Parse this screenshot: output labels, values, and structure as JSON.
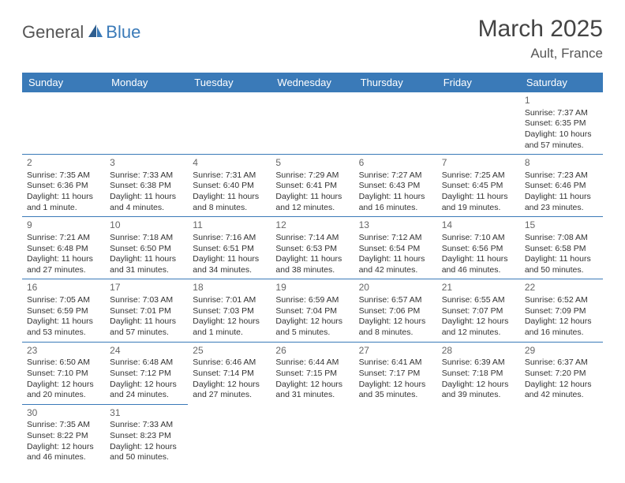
{
  "brand": {
    "part1": "General",
    "part2": "Blue"
  },
  "title": "March 2025",
  "location": "Ault, France",
  "colors": {
    "header_bg": "#3a7ab8",
    "header_text": "#ffffff",
    "border": "#3a7ab8",
    "body_text": "#333333",
    "daynum": "#666666",
    "background": "#ffffff"
  },
  "typography": {
    "title_fontsize": 30,
    "location_fontsize": 17,
    "dayheader_fontsize": 13,
    "cell_fontsize": 10.5,
    "daynum_fontsize": 12
  },
  "day_headers": [
    "Sunday",
    "Monday",
    "Tuesday",
    "Wednesday",
    "Thursday",
    "Friday",
    "Saturday"
  ],
  "weeks": [
    [
      null,
      null,
      null,
      null,
      null,
      null,
      {
        "n": "1",
        "sr": "Sunrise: 7:37 AM",
        "ss": "Sunset: 6:35 PM",
        "dl": "Daylight: 10 hours and 57 minutes."
      }
    ],
    [
      {
        "n": "2",
        "sr": "Sunrise: 7:35 AM",
        "ss": "Sunset: 6:36 PM",
        "dl": "Daylight: 11 hours and 1 minute."
      },
      {
        "n": "3",
        "sr": "Sunrise: 7:33 AM",
        "ss": "Sunset: 6:38 PM",
        "dl": "Daylight: 11 hours and 4 minutes."
      },
      {
        "n": "4",
        "sr": "Sunrise: 7:31 AM",
        "ss": "Sunset: 6:40 PM",
        "dl": "Daylight: 11 hours and 8 minutes."
      },
      {
        "n": "5",
        "sr": "Sunrise: 7:29 AM",
        "ss": "Sunset: 6:41 PM",
        "dl": "Daylight: 11 hours and 12 minutes."
      },
      {
        "n": "6",
        "sr": "Sunrise: 7:27 AM",
        "ss": "Sunset: 6:43 PM",
        "dl": "Daylight: 11 hours and 16 minutes."
      },
      {
        "n": "7",
        "sr": "Sunrise: 7:25 AM",
        "ss": "Sunset: 6:45 PM",
        "dl": "Daylight: 11 hours and 19 minutes."
      },
      {
        "n": "8",
        "sr": "Sunrise: 7:23 AM",
        "ss": "Sunset: 6:46 PM",
        "dl": "Daylight: 11 hours and 23 minutes."
      }
    ],
    [
      {
        "n": "9",
        "sr": "Sunrise: 7:21 AM",
        "ss": "Sunset: 6:48 PM",
        "dl": "Daylight: 11 hours and 27 minutes."
      },
      {
        "n": "10",
        "sr": "Sunrise: 7:18 AM",
        "ss": "Sunset: 6:50 PM",
        "dl": "Daylight: 11 hours and 31 minutes."
      },
      {
        "n": "11",
        "sr": "Sunrise: 7:16 AM",
        "ss": "Sunset: 6:51 PM",
        "dl": "Daylight: 11 hours and 34 minutes."
      },
      {
        "n": "12",
        "sr": "Sunrise: 7:14 AM",
        "ss": "Sunset: 6:53 PM",
        "dl": "Daylight: 11 hours and 38 minutes."
      },
      {
        "n": "13",
        "sr": "Sunrise: 7:12 AM",
        "ss": "Sunset: 6:54 PM",
        "dl": "Daylight: 11 hours and 42 minutes."
      },
      {
        "n": "14",
        "sr": "Sunrise: 7:10 AM",
        "ss": "Sunset: 6:56 PM",
        "dl": "Daylight: 11 hours and 46 minutes."
      },
      {
        "n": "15",
        "sr": "Sunrise: 7:08 AM",
        "ss": "Sunset: 6:58 PM",
        "dl": "Daylight: 11 hours and 50 minutes."
      }
    ],
    [
      {
        "n": "16",
        "sr": "Sunrise: 7:05 AM",
        "ss": "Sunset: 6:59 PM",
        "dl": "Daylight: 11 hours and 53 minutes."
      },
      {
        "n": "17",
        "sr": "Sunrise: 7:03 AM",
        "ss": "Sunset: 7:01 PM",
        "dl": "Daylight: 11 hours and 57 minutes."
      },
      {
        "n": "18",
        "sr": "Sunrise: 7:01 AM",
        "ss": "Sunset: 7:03 PM",
        "dl": "Daylight: 12 hours and 1 minute."
      },
      {
        "n": "19",
        "sr": "Sunrise: 6:59 AM",
        "ss": "Sunset: 7:04 PM",
        "dl": "Daylight: 12 hours and 5 minutes."
      },
      {
        "n": "20",
        "sr": "Sunrise: 6:57 AM",
        "ss": "Sunset: 7:06 PM",
        "dl": "Daylight: 12 hours and 8 minutes."
      },
      {
        "n": "21",
        "sr": "Sunrise: 6:55 AM",
        "ss": "Sunset: 7:07 PM",
        "dl": "Daylight: 12 hours and 12 minutes."
      },
      {
        "n": "22",
        "sr": "Sunrise: 6:52 AM",
        "ss": "Sunset: 7:09 PM",
        "dl": "Daylight: 12 hours and 16 minutes."
      }
    ],
    [
      {
        "n": "23",
        "sr": "Sunrise: 6:50 AM",
        "ss": "Sunset: 7:10 PM",
        "dl": "Daylight: 12 hours and 20 minutes."
      },
      {
        "n": "24",
        "sr": "Sunrise: 6:48 AM",
        "ss": "Sunset: 7:12 PM",
        "dl": "Daylight: 12 hours and 24 minutes."
      },
      {
        "n": "25",
        "sr": "Sunrise: 6:46 AM",
        "ss": "Sunset: 7:14 PM",
        "dl": "Daylight: 12 hours and 27 minutes."
      },
      {
        "n": "26",
        "sr": "Sunrise: 6:44 AM",
        "ss": "Sunset: 7:15 PM",
        "dl": "Daylight: 12 hours and 31 minutes."
      },
      {
        "n": "27",
        "sr": "Sunrise: 6:41 AM",
        "ss": "Sunset: 7:17 PM",
        "dl": "Daylight: 12 hours and 35 minutes."
      },
      {
        "n": "28",
        "sr": "Sunrise: 6:39 AM",
        "ss": "Sunset: 7:18 PM",
        "dl": "Daylight: 12 hours and 39 minutes."
      },
      {
        "n": "29",
        "sr": "Sunrise: 6:37 AM",
        "ss": "Sunset: 7:20 PM",
        "dl": "Daylight: 12 hours and 42 minutes."
      }
    ],
    [
      {
        "n": "30",
        "sr": "Sunrise: 7:35 AM",
        "ss": "Sunset: 8:22 PM",
        "dl": "Daylight: 12 hours and 46 minutes."
      },
      {
        "n": "31",
        "sr": "Sunrise: 7:33 AM",
        "ss": "Sunset: 8:23 PM",
        "dl": "Daylight: 12 hours and 50 minutes."
      },
      null,
      null,
      null,
      null,
      null
    ]
  ]
}
